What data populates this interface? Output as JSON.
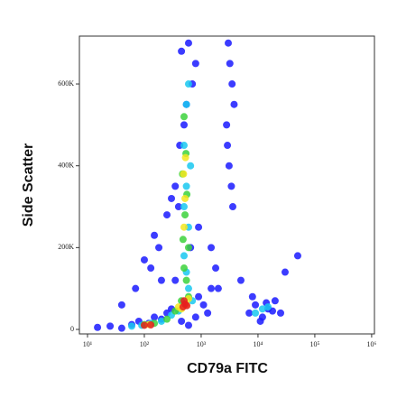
{
  "chart_data": {
    "type": "scatter",
    "x_label": "CD79a FITC",
    "y_label": "Side Scatter",
    "x_log": true,
    "xlim": [
      7.2,
      1120000
    ],
    "ylim": [
      -11000,
      717000
    ],
    "xticks": [
      {
        "value": 10,
        "label": "10¹"
      },
      {
        "value": 100,
        "label": "10²"
      },
      {
        "value": 1000,
        "label": "10³"
      },
      {
        "value": 10000,
        "label": "10⁴"
      },
      {
        "value": 100000,
        "label": "10⁵"
      },
      {
        "value": 1000000,
        "label": "10⁶"
      }
    ],
    "yticks": [
      0,
      {
        "value": 200000,
        "label": "200K"
      },
      {
        "value": 400000,
        "label": "400K"
      },
      {
        "value": 600000,
        "label": "600K"
      }
    ],
    "series": [
      {
        "color": "#1a1aff",
        "x": [
          15,
          25,
          40,
          60,
          80,
          120,
          150,
          200,
          250,
          300,
          40,
          70,
          130,
          180,
          350,
          450,
          600,
          800,
          900,
          1100,
          1300,
          1500,
          800,
          700,
          600,
          550,
          500,
          450,
          400,
          650,
          900,
          350,
          420,
          3000,
          3200,
          3500,
          2800,
          3800,
          3100,
          3400,
          2900,
          3600,
          5000,
          7000,
          9000,
          12000,
          15000,
          20000,
          25000,
          8000,
          11000,
          14000,
          18000,
          100,
          150,
          200,
          250,
          300,
          1500,
          1800,
          2000,
          30000,
          50000
        ],
        "values": [
          5000,
          8000,
          3000,
          12000,
          20000,
          15000,
          30000,
          25000,
          40000,
          50000,
          60000,
          100000,
          150000,
          200000,
          120000,
          20000,
          10000,
          30000,
          80000,
          60000,
          40000,
          100000,
          650000,
          600000,
          700000,
          550000,
          500000,
          680000,
          300000,
          200000,
          250000,
          350000,
          450000,
          700000,
          650000,
          600000,
          500000,
          550000,
          400000,
          350000,
          450000,
          300000,
          120000,
          40000,
          60000,
          30000,
          50000,
          70000,
          40000,
          80000,
          20000,
          65000,
          45000,
          170000,
          230000,
          120000,
          280000,
          320000,
          200000,
          150000,
          100000,
          140000,
          180000
        ]
      },
      {
        "color": "#19c8f0",
        "x": [
          60,
          90,
          130,
          200,
          300,
          400,
          700,
          600,
          550,
          500,
          600,
          550,
          500,
          550,
          600,
          12000,
          9000,
          15000,
          500,
          650
        ],
        "values": [
          8000,
          10000,
          15000,
          20000,
          35000,
          45000,
          70000,
          100000,
          140000,
          180000,
          250000,
          350000,
          450000,
          550000,
          600000,
          50000,
          40000,
          55000,
          300000,
          400000
        ]
      },
      {
        "color": "#3cd23c",
        "x": [
          100,
          150,
          250,
          350,
          450,
          600,
          500,
          480,
          520,
          560,
          470,
          540,
          500,
          600,
          550
        ],
        "values": [
          12000,
          15000,
          25000,
          45000,
          70000,
          80000,
          150000,
          220000,
          280000,
          330000,
          380000,
          430000,
          520000,
          200000,
          120000
        ]
      },
      {
        "color": "#f5e61e",
        "x": [
          120,
          400,
          550,
          500,
          520,
          490,
          530,
          600,
          450
        ],
        "values": [
          12000,
          55000,
          60000,
          250000,
          320000,
          380000,
          420000,
          75000,
          50000
        ]
      },
      {
        "color": "#e61e1e",
        "x": [
          100,
          130,
          480,
          520,
          560,
          500
        ],
        "values": [
          10000,
          11000,
          55000,
          62000,
          58000,
          70000
        ]
      }
    ]
  }
}
